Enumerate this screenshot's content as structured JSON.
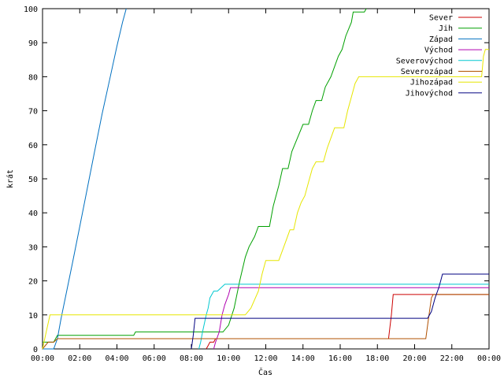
{
  "chart_data": {
    "type": "line",
    "xlabel": "Čas",
    "ylabel": "krát",
    "ylim": [
      0,
      100
    ],
    "xlim": [
      0,
      24
    ],
    "grid": false,
    "legend_placement": "top-right",
    "x_ticks": [
      {
        "value": 0,
        "label": "00:00"
      },
      {
        "value": 2,
        "label": "02:00"
      },
      {
        "value": 4,
        "label": "04:00"
      },
      {
        "value": 6,
        "label": "06:00"
      },
      {
        "value": 8,
        "label": "08:00"
      },
      {
        "value": 10,
        "label": "10:00"
      },
      {
        "value": 12,
        "label": "12:00"
      },
      {
        "value": 14,
        "label": "14:00"
      },
      {
        "value": 16,
        "label": "16:00"
      },
      {
        "value": 18,
        "label": "18:00"
      },
      {
        "value": 20,
        "label": "20:00"
      },
      {
        "value": 22,
        "label": "22:00"
      },
      {
        "value": 24,
        "label": "00:00"
      }
    ],
    "y_ticks": [
      0,
      10,
      20,
      30,
      40,
      50,
      60,
      70,
      80,
      90,
      100
    ],
    "series": [
      {
        "name": "Sever",
        "color": "#cc0000",
        "points": [
          [
            8.8,
            0
          ],
          [
            8.9,
            1
          ],
          [
            9.0,
            2
          ],
          [
            9.2,
            2
          ],
          [
            9.3,
            3
          ],
          [
            18.6,
            3
          ],
          [
            18.75,
            10
          ],
          [
            18.85,
            16
          ],
          [
            24,
            16
          ]
        ]
      },
      {
        "name": "Jih",
        "color": "#00a000",
        "points": [
          [
            0,
            2
          ],
          [
            0.6,
            2
          ],
          [
            0.8,
            4
          ],
          [
            4.9,
            4
          ],
          [
            5.0,
            5
          ],
          [
            9.7,
            5
          ],
          [
            10.0,
            7
          ],
          [
            10.3,
            12
          ],
          [
            10.6,
            20
          ],
          [
            10.9,
            27
          ],
          [
            11.1,
            30
          ],
          [
            11.4,
            33
          ],
          [
            11.6,
            36
          ],
          [
            12.2,
            36
          ],
          [
            12.4,
            42
          ],
          [
            12.7,
            48
          ],
          [
            12.9,
            53
          ],
          [
            13.2,
            53
          ],
          [
            13.4,
            58
          ],
          [
            13.7,
            62
          ],
          [
            14.0,
            66
          ],
          [
            14.3,
            66
          ],
          [
            14.5,
            70
          ],
          [
            14.7,
            73
          ],
          [
            15.0,
            73
          ],
          [
            15.2,
            77
          ],
          [
            15.5,
            80
          ],
          [
            15.7,
            83
          ],
          [
            15.9,
            86
          ],
          [
            16.1,
            88
          ],
          [
            16.3,
            92
          ],
          [
            16.6,
            96
          ],
          [
            16.7,
            99
          ],
          [
            17.3,
            99
          ],
          [
            17.4,
            100
          ]
        ]
      },
      {
        "name": "Západ",
        "color": "#0070c0",
        "points": [
          [
            0,
            0
          ],
          [
            0.6,
            0
          ],
          [
            0.8,
            3
          ],
          [
            1.0,
            9
          ],
          [
            1.3,
            17
          ],
          [
            1.6,
            25
          ],
          [
            2.0,
            36
          ],
          [
            2.4,
            47
          ],
          [
            2.8,
            58
          ],
          [
            3.2,
            69
          ],
          [
            3.6,
            79
          ],
          [
            4.0,
            89
          ],
          [
            4.3,
            96
          ],
          [
            4.5,
            100
          ]
        ]
      },
      {
        "name": "Východ",
        "color": "#b000b0",
        "points": [
          [
            9.2,
            0
          ],
          [
            9.3,
            2
          ],
          [
            9.5,
            5
          ],
          [
            9.65,
            10
          ],
          [
            9.8,
            13
          ],
          [
            10.0,
            16
          ],
          [
            10.1,
            18
          ],
          [
            24,
            18
          ]
        ]
      },
      {
        "name": "Severovýchod",
        "color": "#00c8d0",
        "points": [
          [
            8.4,
            0
          ],
          [
            8.5,
            2
          ],
          [
            8.6,
            5
          ],
          [
            8.8,
            10
          ],
          [
            8.9,
            12
          ],
          [
            9.0,
            15
          ],
          [
            9.2,
            17
          ],
          [
            9.4,
            17
          ],
          [
            9.6,
            18
          ],
          [
            9.8,
            19
          ],
          [
            24,
            19
          ]
        ]
      },
      {
        "name": "Severozápad",
        "color": "#b05000",
        "points": [
          [
            0,
            0
          ],
          [
            0.3,
            2
          ],
          [
            0.6,
            2
          ],
          [
            0.8,
            3
          ],
          [
            20.6,
            3
          ],
          [
            20.75,
            9
          ],
          [
            20.9,
            15
          ],
          [
            21.0,
            16
          ],
          [
            24,
            16
          ]
        ]
      },
      {
        "name": "Jihozápad",
        "color": "#e6e600",
        "points": [
          [
            0,
            0
          ],
          [
            0.2,
            5
          ],
          [
            0.4,
            10
          ],
          [
            10.9,
            10
          ],
          [
            11.2,
            12
          ],
          [
            11.6,
            17
          ],
          [
            11.8,
            22
          ],
          [
            12.0,
            26
          ],
          [
            12.7,
            26
          ],
          [
            12.9,
            29
          ],
          [
            13.1,
            32
          ],
          [
            13.3,
            35
          ],
          [
            13.5,
            35
          ],
          [
            13.7,
            40
          ],
          [
            13.9,
            43
          ],
          [
            14.1,
            45
          ],
          [
            14.3,
            49
          ],
          [
            14.5,
            53
          ],
          [
            14.7,
            55
          ],
          [
            15.1,
            55
          ],
          [
            15.3,
            59
          ],
          [
            15.5,
            62
          ],
          [
            15.7,
            65
          ],
          [
            16.2,
            65
          ],
          [
            16.4,
            70
          ],
          [
            16.6,
            74
          ],
          [
            16.8,
            78
          ],
          [
            17.0,
            80
          ],
          [
            23.6,
            80
          ],
          [
            23.7,
            86
          ],
          [
            23.8,
            88
          ],
          [
            24,
            88
          ]
        ]
      },
      {
        "name": "Jihovýchod",
        "color": "#000080",
        "points": [
          [
            8.0,
            0
          ],
          [
            8.1,
            4
          ],
          [
            8.2,
            9
          ],
          [
            20.7,
            9
          ],
          [
            20.9,
            11
          ],
          [
            21.1,
            15
          ],
          [
            21.3,
            18
          ],
          [
            21.4,
            20
          ],
          [
            21.5,
            22
          ],
          [
            24,
            22
          ]
        ]
      }
    ]
  }
}
